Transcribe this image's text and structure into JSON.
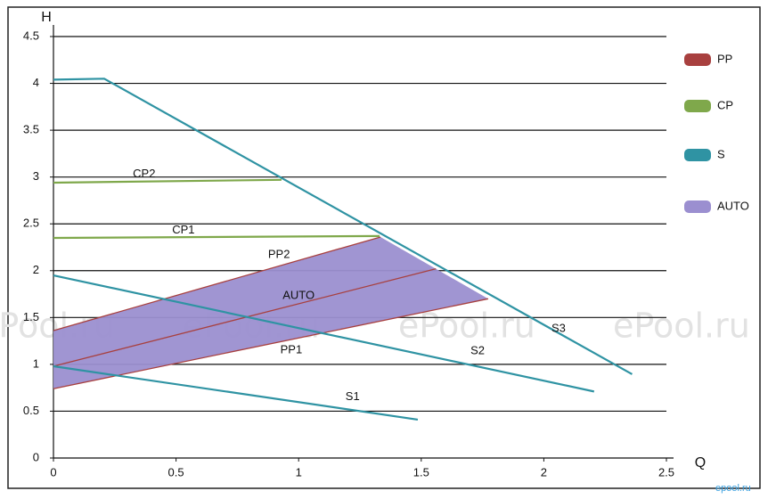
{
  "chart_data": {
    "type": "line",
    "xlabel": "Q",
    "ylabel": "H",
    "xlim": [
      0,
      2.5
    ],
    "xticks": [
      0,
      0.5,
      1,
      1.5,
      2,
      2.5
    ],
    "ylim": [
      0,
      4.5
    ],
    "yticks": [
      0,
      0.5,
      1,
      1.5,
      2,
      2.5,
      3,
      3.5,
      4,
      4.5
    ],
    "grid": true,
    "watermark": "ePool.ru",
    "site": "epool.ru",
    "legend": [
      {
        "name": "PP",
        "color": "#a8403f"
      },
      {
        "name": "CP",
        "color": "#7fa84b"
      },
      {
        "name": "S",
        "color": "#2f93a3"
      },
      {
        "name": "AUTO",
        "color": "#9b8fd0"
      }
    ],
    "area": {
      "name": "AUTO",
      "color": "#9b8fd0",
      "x": [
        0,
        1.334,
        1.773,
        0
      ],
      "values": [
        1.36,
        2.36,
        1.7,
        0.74
      ]
    },
    "series": [
      {
        "name": "PP2",
        "color": "#a8403f",
        "x": [
          0,
          1.334
        ],
        "values": [
          1.36,
          2.36
        ]
      },
      {
        "name": "PP1",
        "color": "#a8403f",
        "x": [
          0,
          1.773
        ],
        "values": [
          0.74,
          1.7
        ]
      },
      {
        "name": "AUTO",
        "color": "#a8403f",
        "x": [
          0,
          1.56
        ],
        "values": [
          0.98,
          2.02
        ]
      },
      {
        "name": "CP2",
        "color": "#7fa84b",
        "x": [
          0,
          0.93
        ],
        "values": [
          2.94,
          2.97
        ]
      },
      {
        "name": "CP1",
        "color": "#7fa84b",
        "x": [
          0,
          1.33
        ],
        "values": [
          2.35,
          2.37
        ]
      },
      {
        "name": "S3",
        "color": "#2f93a3",
        "x": [
          0,
          0.207,
          2.36
        ],
        "values": [
          4.04,
          4.05,
          0.895
        ]
      },
      {
        "name": "S2",
        "color": "#2f93a3",
        "x": [
          0,
          2.205
        ],
        "values": [
          1.95,
          0.71
        ]
      },
      {
        "name": "S1",
        "color": "#2f93a3",
        "x": [
          0,
          1.486
        ],
        "values": [
          0.98,
          0.41
        ]
      }
    ]
  }
}
